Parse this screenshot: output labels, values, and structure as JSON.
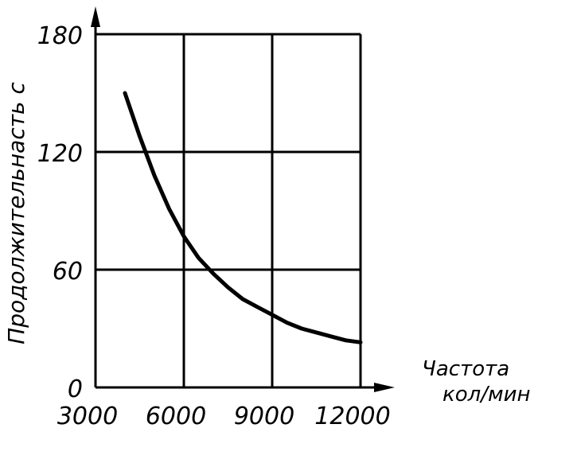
{
  "chart_data": {
    "type": "line",
    "title": "",
    "xlabel_line1": "Частота",
    "xlabel_line2": "кол/мин",
    "ylabel": "Продолжительнасть с",
    "xlim": [
      3000,
      12000
    ],
    "ylim": [
      0,
      180
    ],
    "xticks": [
      "3000",
      "6000",
      "9000",
      "12000"
    ],
    "yticks": [
      "0",
      "60",
      "120",
      "180"
    ],
    "xtick_values": [
      3000,
      6000,
      9000,
      12000
    ],
    "ytick_values": [
      0,
      60,
      120,
      180
    ],
    "grid": true,
    "series": [
      {
        "x": [
          4000,
          4500,
          5000,
          5500,
          6000,
          6500,
          7000,
          7500,
          8000,
          8500,
          9000,
          9500,
          10000,
          10500,
          11000,
          11500,
          12000
        ],
        "y": [
          150,
          128,
          108,
          91,
          77,
          66,
          58,
          51,
          45,
          41,
          37,
          33,
          30,
          28,
          26,
          24,
          23
        ]
      }
    ]
  }
}
